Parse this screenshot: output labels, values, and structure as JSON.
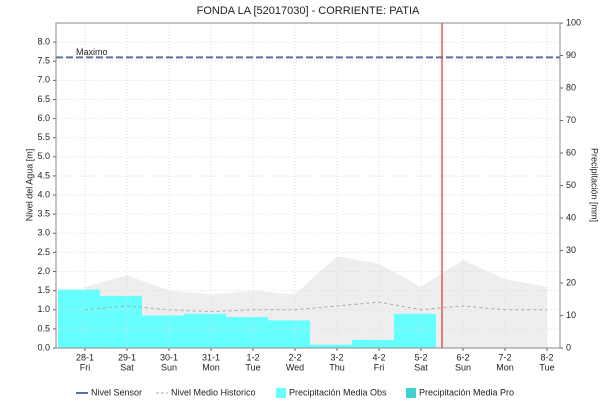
{
  "chart_data": {
    "type": "combo",
    "title": "FONDA LA [52017030] - CORRIENTE: PATIA",
    "y_label": "Nivel del Agua [m]",
    "y2_label": "Precipitación [mm]",
    "categories": [
      "28-1",
      "29-1",
      "30-1",
      "31-1",
      "1-2",
      "2-2",
      "3-2",
      "4-2",
      "5-2",
      "6-2",
      "7-2",
      "8-2"
    ],
    "weekdays": [
      "Fri",
      "Sat",
      "Sun",
      "Mon",
      "Tue",
      "Wed",
      "Thu",
      "Fri",
      "Sat",
      "Sun",
      "Mon",
      "Tue"
    ],
    "ylim": [
      0,
      8.5
    ],
    "yticks": [
      {
        "value": 0,
        "label": "0.0"
      },
      {
        "value": 0.5,
        "label": "0.5"
      },
      {
        "value": 1,
        "label": "1.0"
      },
      {
        "value": 1.5,
        "label": "1.5"
      },
      {
        "value": 2,
        "label": "2.0"
      },
      {
        "value": 2.5,
        "label": "2.5"
      },
      {
        "value": 3,
        "label": "3.0"
      },
      {
        "value": 3.5,
        "label": "3.5"
      },
      {
        "value": 4,
        "label": "4.0"
      },
      {
        "value": 4.5,
        "label": "4.5"
      },
      {
        "value": 5,
        "label": "5.0"
      },
      {
        "value": 5.5,
        "label": "5.5"
      },
      {
        "value": 6,
        "label": "6.0"
      },
      {
        "value": 6.5,
        "label": "6.5"
      },
      {
        "value": 7,
        "label": "7.0"
      },
      {
        "value": 7.5,
        "label": "7.5"
      },
      {
        "value": 8,
        "label": "8.0"
      }
    ],
    "y2lim": [
      0,
      100
    ],
    "y2ticks": [
      0,
      10,
      20,
      30,
      40,
      50,
      60,
      70,
      80,
      90,
      100
    ],
    "maximo": {
      "label": "Maximo",
      "value": 7.6,
      "color": "#5a6fa8"
    },
    "current_index": 8.5,
    "current_color": "#e03030",
    "grid": true,
    "series": [
      {
        "name": "Nivel Sensor",
        "color": "#1f3f9f",
        "values": [
          null,
          null,
          null,
          null,
          null,
          null,
          null,
          null,
          null,
          null,
          null,
          null
        ]
      },
      {
        "name": "Nivel Medio Historico",
        "color": "#aaaaaa",
        "values": [
          1.0,
          1.1,
          1.0,
          0.95,
          1.0,
          1.0,
          1.1,
          1.2,
          1.0,
          1.1,
          1.0,
          1.0
        ],
        "upper": [
          1.6,
          1.9,
          1.5,
          1.4,
          1.5,
          1.4,
          2.4,
          2.2,
          1.6,
          2.3,
          1.8,
          1.6
        ],
        "band_color": "#eeeeee"
      },
      {
        "name": "Precipitación Media Obs",
        "color": "#66ffff",
        "axis": "y2",
        "values": [
          18,
          16,
          10,
          10.5,
          9.5,
          8.5,
          1,
          2.5,
          10.5,
          null,
          null,
          null
        ]
      },
      {
        "name": "Precipitación Media Pro",
        "color": "#40d0d0",
        "axis": "y2",
        "values": [
          null,
          null,
          null,
          null,
          null,
          null,
          null,
          null,
          null,
          null,
          null,
          null
        ]
      }
    ]
  }
}
